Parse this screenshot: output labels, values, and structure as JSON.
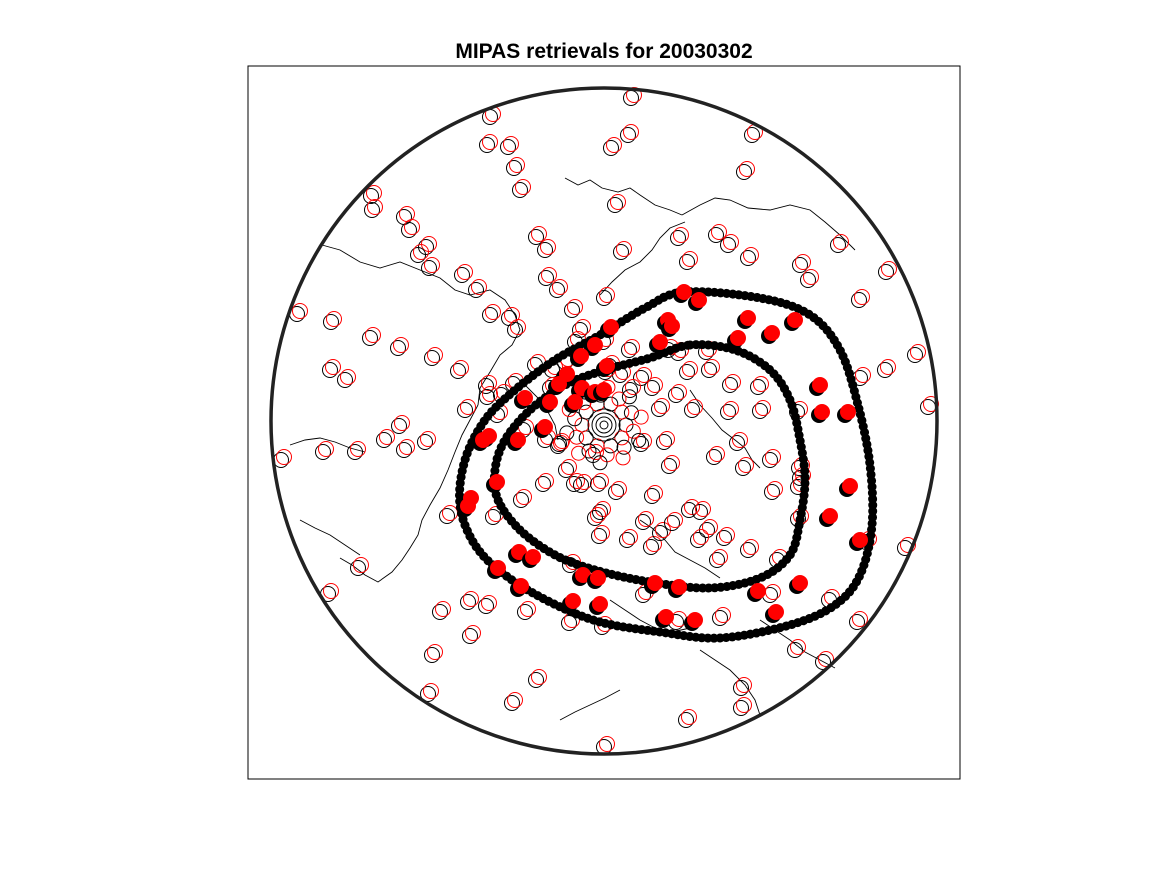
{
  "figure": {
    "title": "MIPAS retrievals for 20030302"
  },
  "chart_data": {
    "type": "scatter",
    "projection": "polar stereographic (north pole)",
    "title": "MIPAS retrievals for 20030302",
    "grid": false,
    "legend": "none",
    "boundary": "circle",
    "colors": {
      "ring": "#222222",
      "vortex_edge": "#000000",
      "inside_marker": "#ff0000",
      "coastline": "#000000",
      "open_marker_black": "#000000",
      "open_marker_red": "#ff0000"
    },
    "series": [
      {
        "name": "",
        "style": "open circle (black + red pairs)"
      },
      {
        "name": "",
        "style": "filled circle (black + red pairs)"
      },
      {
        "name": "",
        "style": "thick black contour"
      },
      {
        "name": "",
        "style": "thick black contour"
      },
      {
        "name": "",
        "style": "thin black lines"
      }
    ]
  }
}
